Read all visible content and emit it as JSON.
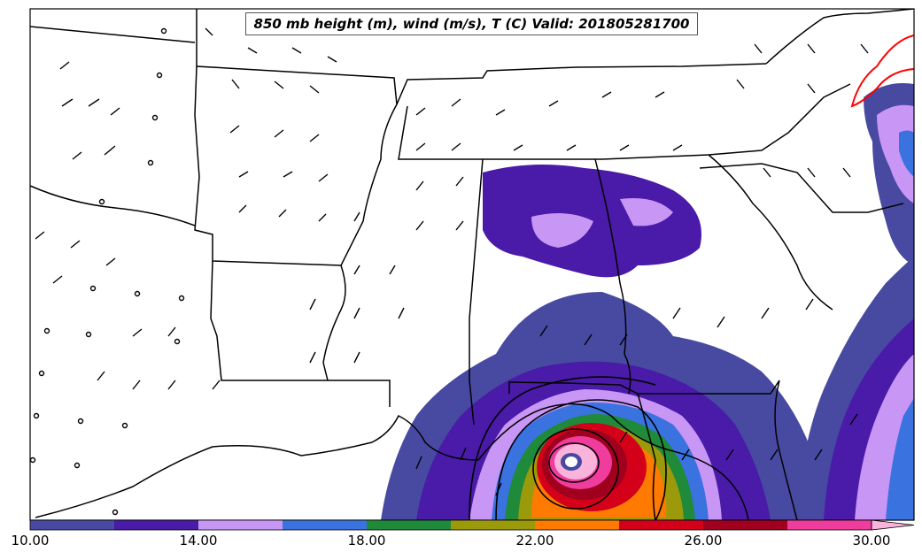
{
  "title": "850 mb height (m), wind (m/s), T (C) Valid: 201805281700",
  "colorbar": {
    "ticks": [
      "10.00",
      "14.00",
      "18.00",
      "22.00",
      "26.00",
      "30.00"
    ],
    "colors": [
      "#474aa0",
      "#4a1aa8",
      "#c896f5",
      "#3a72e0",
      "#1f8a3a",
      "#9a9a0a",
      "#ff7a00",
      "#d4001a",
      "#a0001e",
      "#f03c9c",
      "#fab4dc"
    ]
  },
  "palette": {
    "c1": "#474aa0",
    "c2": "#4a1aa8",
    "c3": "#c896f5",
    "c4": "#3a72e0",
    "c5": "#1f8a3a",
    "c6": "#9a9a0a",
    "c7": "#ff7a00",
    "c8": "#d4001a",
    "c9": "#a0001e",
    "c10": "#f03c9c",
    "c11": "#fab4dc",
    "red_contour": "#ff0000"
  }
}
